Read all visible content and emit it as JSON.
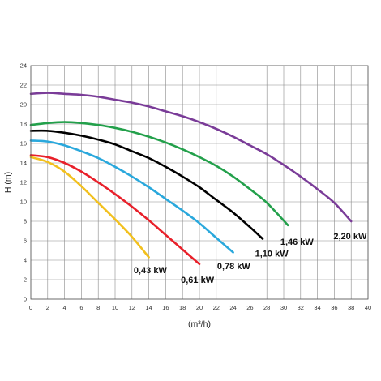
{
  "chart_data": {
    "type": "line",
    "xlabel": "(m³/h)",
    "ylabel": "H  (m)",
    "xlim": [
      0,
      40
    ],
    "ylim": [
      0,
      24
    ],
    "x_ticks": [
      "0",
      "2",
      "4",
      "6",
      "8",
      "10",
      "12",
      "14",
      "16",
      "18",
      "20",
      "22",
      "24",
      "26",
      "28",
      "30",
      "32",
      "34",
      "36",
      "38",
      "40"
    ],
    "y_ticks": [
      "0",
      "2",
      "4",
      "6",
      "8",
      "10",
      "12",
      "14",
      "16",
      "18",
      "20",
      "22",
      "24"
    ],
    "grid": true,
    "series": [
      {
        "name": "0,43 kW",
        "color": "#f2c01e",
        "points": [
          [
            0,
            14.6
          ],
          [
            2,
            14.1
          ],
          [
            4,
            13.1
          ],
          [
            6,
            11.6
          ],
          [
            8,
            9.9
          ],
          [
            10,
            8.2
          ],
          [
            12,
            6.4
          ],
          [
            14,
            4.3
          ]
        ]
      },
      {
        "name": "0,61 kW",
        "color": "#e8202a",
        "points": [
          [
            0,
            14.8
          ],
          [
            2,
            14.6
          ],
          [
            4,
            14.0
          ],
          [
            6,
            13.1
          ],
          [
            8,
            12.0
          ],
          [
            10,
            10.8
          ],
          [
            12,
            9.5
          ],
          [
            14,
            8.1
          ],
          [
            16,
            6.6
          ],
          [
            18,
            5.1
          ],
          [
            20,
            3.6
          ]
        ]
      },
      {
        "name": "0,78 kW",
        "color": "#2aa8dc",
        "points": [
          [
            0,
            16.3
          ],
          [
            2,
            16.2
          ],
          [
            4,
            15.8
          ],
          [
            6,
            15.2
          ],
          [
            8,
            14.5
          ],
          [
            10,
            13.6
          ],
          [
            12,
            12.6
          ],
          [
            14,
            11.5
          ],
          [
            16,
            10.3
          ],
          [
            18,
            9.1
          ],
          [
            20,
            7.8
          ],
          [
            22,
            6.3
          ],
          [
            24,
            4.8
          ]
        ]
      },
      {
        "name": "1,10 kW",
        "color": "#000000",
        "points": [
          [
            0,
            17.3
          ],
          [
            2,
            17.3
          ],
          [
            4,
            17.1
          ],
          [
            6,
            16.8
          ],
          [
            8,
            16.4
          ],
          [
            10,
            15.9
          ],
          [
            12,
            15.2
          ],
          [
            14,
            14.5
          ],
          [
            16,
            13.6
          ],
          [
            18,
            12.6
          ],
          [
            20,
            11.5
          ],
          [
            22,
            10.2
          ],
          [
            24,
            8.9
          ],
          [
            26,
            7.4
          ],
          [
            27.5,
            6.2
          ]
        ]
      },
      {
        "name": "1,46 kW",
        "color": "#23a04b",
        "points": [
          [
            0,
            17.9
          ],
          [
            2,
            18.1
          ],
          [
            4,
            18.2
          ],
          [
            6,
            18.1
          ],
          [
            8,
            17.9
          ],
          [
            10,
            17.6
          ],
          [
            12,
            17.2
          ],
          [
            14,
            16.7
          ],
          [
            16,
            16.1
          ],
          [
            18,
            15.4
          ],
          [
            20,
            14.6
          ],
          [
            22,
            13.7
          ],
          [
            24,
            12.6
          ],
          [
            26,
            11.3
          ],
          [
            28,
            9.9
          ],
          [
            30.5,
            7.6
          ]
        ]
      },
      {
        "name": "2,20 kW",
        "color": "#7a3c98",
        "points": [
          [
            0,
            21.1
          ],
          [
            2,
            21.2
          ],
          [
            4,
            21.1
          ],
          [
            6,
            21.0
          ],
          [
            8,
            20.8
          ],
          [
            10,
            20.5
          ],
          [
            12,
            20.2
          ],
          [
            14,
            19.8
          ],
          [
            16,
            19.3
          ],
          [
            18,
            18.8
          ],
          [
            20,
            18.2
          ],
          [
            22,
            17.5
          ],
          [
            24,
            16.7
          ],
          [
            26,
            15.8
          ],
          [
            28,
            14.9
          ],
          [
            30,
            13.8
          ],
          [
            32,
            12.6
          ],
          [
            34,
            11.3
          ],
          [
            36,
            9.9
          ],
          [
            38,
            8.0
          ]
        ]
      }
    ],
    "annotations": [
      {
        "text": "0,43 kW",
        "x": 12.2,
        "y": 3.0
      },
      {
        "text": "0,61 kW",
        "x": 17.8,
        "y": 2.0
      },
      {
        "text": "0,78 kW",
        "x": 22.1,
        "y": 3.4
      },
      {
        "text": "1,10 kW",
        "x": 26.6,
        "y": 4.7
      },
      {
        "text": "1,46 kW",
        "x": 29.6,
        "y": 5.9
      },
      {
        "text": "2,20 kW",
        "x": 35.9,
        "y": 6.5
      }
    ]
  }
}
